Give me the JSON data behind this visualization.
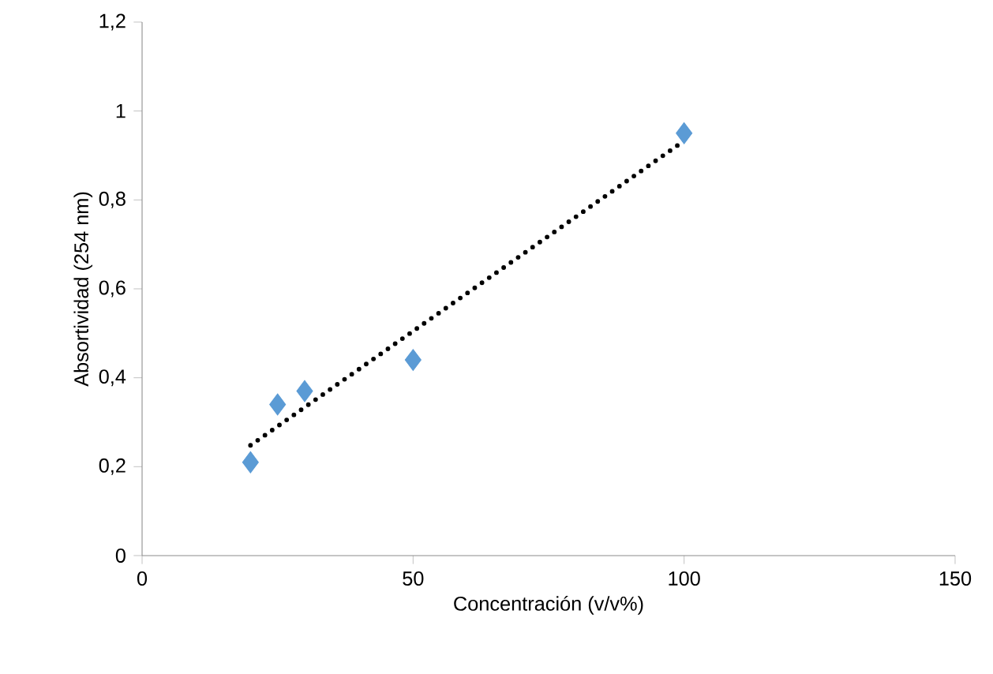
{
  "chart_data": {
    "type": "scatter",
    "xlabel": "Concentración (v/v%)",
    "ylabel": "Absortividad (254 nm)",
    "xlim": [
      0,
      150
    ],
    "xticks": [
      0,
      50,
      100,
      150
    ],
    "ylim": [
      0,
      1.2
    ],
    "yticks": [
      0,
      {
        "value": 0.2,
        "label": "0,2"
      },
      {
        "value": 0.4,
        "label": "0,4"
      },
      {
        "value": 0.6,
        "label": "0,6"
      },
      {
        "value": 0.8,
        "label": "0,8"
      },
      1,
      {
        "value": 1.2,
        "label": "1,2"
      }
    ],
    "grid": false,
    "series": [
      {
        "color": "#5b9bd5",
        "marker": "diamond",
        "x": [
          20,
          25,
          30,
          50,
          100
        ],
        "values": [
          0.21,
          0.34,
          0.37,
          0.44,
          0.95
        ]
      },
      {
        "type": "line",
        "color": "#000000",
        "line_style": "dotted",
        "marker": "none",
        "x": [
          20,
          100
        ],
        "values": [
          0.248,
          0.933
        ]
      }
    ]
  }
}
